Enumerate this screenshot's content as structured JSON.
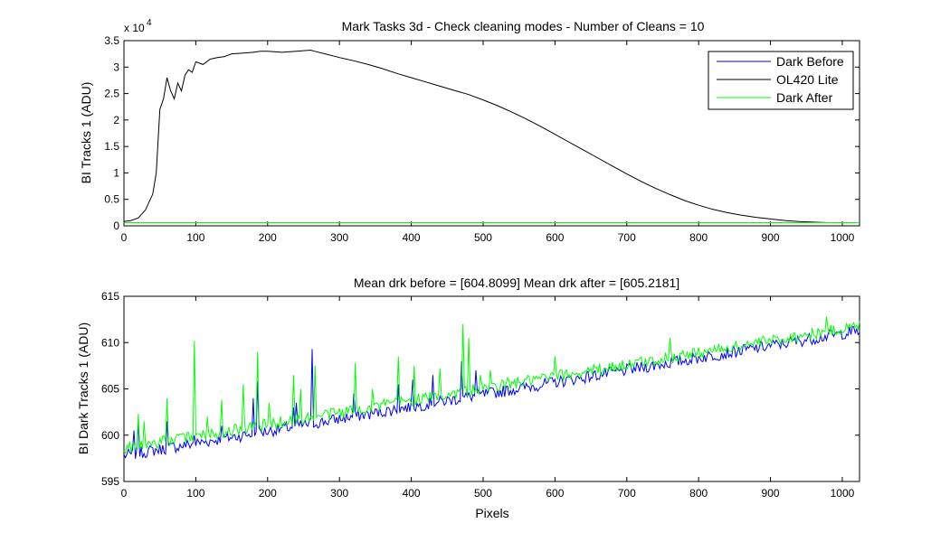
{
  "chart_data": [
    {
      "type": "line",
      "title": "Mark Tasks 3d - Check cleaning modes - Number of Cleans = 10",
      "xlabel": "",
      "ylabel": "BI Tracks 1 (ADU)",
      "y_exponent_label": "x 10",
      "y_exponent_power": "4",
      "xlim": [
        0,
        1024
      ],
      "ylim": [
        0,
        3.5
      ],
      "x_ticks": [
        "0",
        "100",
        "200",
        "300",
        "400",
        "500",
        "600",
        "700",
        "800",
        "900",
        "1000"
      ],
      "y_ticks": [
        "0",
        "0.5",
        "1",
        "1.5",
        "2",
        "2.5",
        "3",
        "3.5"
      ],
      "legend_position": "top-right",
      "series": [
        {
          "name": "Dark Before",
          "color": "#0000ff",
          "x": [
            0,
            1024
          ],
          "y": [
            0.06,
            0.06
          ]
        },
        {
          "name": "OL420 Lite",
          "color": "#000000",
          "x": [
            0,
            10,
            20,
            30,
            40,
            45,
            50,
            55,
            60,
            65,
            70,
            75,
            80,
            85,
            90,
            95,
            100,
            110,
            120,
            130,
            140,
            150,
            160,
            170,
            180,
            190,
            200,
            220,
            240,
            260,
            265,
            280,
            300,
            320,
            340,
            360,
            380,
            400,
            420,
            440,
            460,
            480,
            500,
            520,
            540,
            560,
            580,
            600,
            620,
            640,
            660,
            680,
            700,
            720,
            740,
            760,
            780,
            800,
            820,
            840,
            860,
            880,
            900,
            920,
            940,
            960,
            980,
            1000,
            1024
          ],
          "y": [
            0.08,
            0.1,
            0.15,
            0.3,
            0.6,
            1.0,
            2.2,
            2.4,
            2.8,
            2.55,
            2.4,
            2.7,
            2.55,
            2.85,
            2.95,
            2.9,
            3.1,
            3.05,
            3.15,
            3.18,
            3.2,
            3.25,
            3.26,
            3.27,
            3.28,
            3.3,
            3.3,
            3.28,
            3.3,
            3.32,
            3.3,
            3.25,
            3.18,
            3.12,
            3.05,
            2.97,
            2.88,
            2.8,
            2.72,
            2.64,
            2.56,
            2.48,
            2.38,
            2.27,
            2.15,
            2.02,
            1.88,
            1.73,
            1.58,
            1.43,
            1.28,
            1.13,
            0.98,
            0.84,
            0.71,
            0.59,
            0.48,
            0.39,
            0.31,
            0.25,
            0.2,
            0.16,
            0.13,
            0.1,
            0.08,
            0.07,
            0.06,
            0.06,
            0.06
          ]
        },
        {
          "name": "Dark After",
          "color": "#00ff00",
          "x": [
            0,
            1024
          ],
          "y": [
            0.06,
            0.06
          ]
        }
      ]
    },
    {
      "type": "line",
      "title": "Mean drk before = [604.8099]    Mean drk after = [605.2181]",
      "xlabel": "Pixels",
      "ylabel": "BI Dark Tracks 1 (ADU)",
      "xlim": [
        0,
        1024
      ],
      "ylim": [
        595,
        615
      ],
      "x_ticks": [
        "0",
        "100",
        "200",
        "300",
        "400",
        "500",
        "600",
        "700",
        "800",
        "900",
        "1000"
      ],
      "y_ticks": [
        "595",
        "600",
        "605",
        "610",
        "615"
      ],
      "series": [
        {
          "name": "Dark Before",
          "color": "#0000ff",
          "trend": {
            "x": [
              0,
              1024
            ],
            "y": [
              597.8,
              611.3
            ]
          },
          "spikes": [
            [
              14,
              600.5
            ],
            [
              20,
              601.2
            ],
            [
              60,
              601.5
            ],
            [
              98,
              600.0
            ],
            [
              135,
              601.0
            ],
            [
              180,
              604.0
            ],
            [
              186,
              605.8
            ],
            [
              235,
              603.0
            ],
            [
              240,
              603.5
            ],
            [
              262,
              609.3
            ],
            [
              320,
              604.5
            ],
            [
              382,
              605.5
            ],
            [
              402,
              606.0
            ],
            [
              430,
              606.5
            ],
            [
              470,
              608.0
            ],
            [
              490,
              607.0
            ]
          ]
        },
        {
          "name": "Dark After",
          "color": "#00ff00",
          "trend": {
            "x": [
              0,
              1024
            ],
            "y": [
              598.6,
              611.8
            ]
          },
          "spikes": [
            [
              20,
              602.3
            ],
            [
              28,
              601.5
            ],
            [
              60,
              604.0
            ],
            [
              98,
              610.2
            ],
            [
              115,
              602.0
            ],
            [
              135,
              603.8
            ],
            [
              165,
              605.5
            ],
            [
              185,
              609.0
            ],
            [
              202,
              603.5
            ],
            [
              235,
              606.5
            ],
            [
              245,
              605.0
            ],
            [
              265,
              607.5
            ],
            [
              322,
              607.8
            ],
            [
              346,
              605.0
            ],
            [
              382,
              608.5
            ],
            [
              403,
              607.5
            ],
            [
              440,
              607.2
            ],
            [
              472,
              612.0
            ],
            [
              480,
              610.5
            ],
            [
              495,
              606.5
            ],
            [
              510,
              607.0
            ],
            [
              533,
              606.2
            ],
            [
              600,
              608.5
            ],
            [
              760,
              610.5
            ],
            [
              978,
              612.8
            ]
          ]
        }
      ]
    }
  ]
}
